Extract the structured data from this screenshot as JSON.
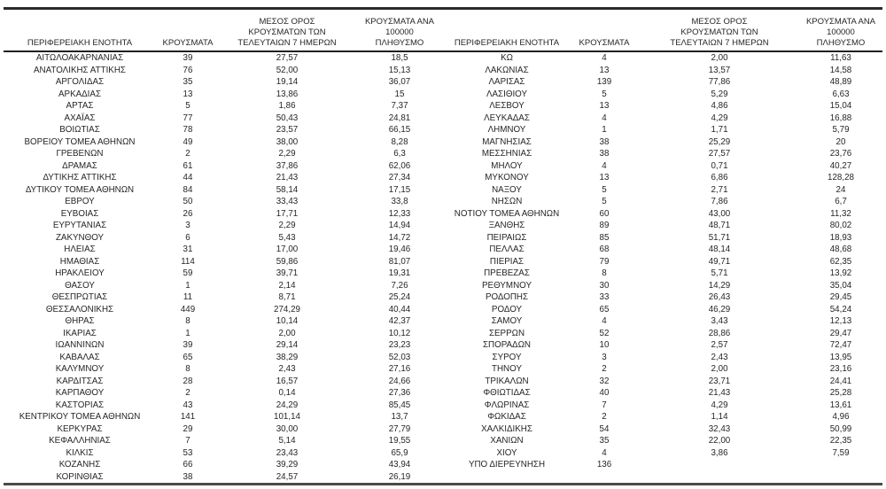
{
  "table": {
    "headers": {
      "region": "ΠΕΡΙΦΕΡΕΙΑΚΗ ΕΝΟΤΗΤΑ",
      "cases": "ΚΡΟΥΣΜΑΤΑ",
      "avg7": "ΜΕΣΟΣ ΟΡΟΣ\nΚΡΟΥΣΜΑΤΩΝ ΤΩΝ\nΤΕΛΕΥΤΑΙΩΝ 7 ΗΜΕΡΩΝ",
      "per100k": "ΚΡΟΥΣΜΑΤΑ ΑΝΑ 100000\nΠΛΗΘΥΣΜΟ"
    },
    "left_rows": [
      {
        "region": "ΑΙΤΩΛΟΑΚΑΡΝΑΝΙΑΣ",
        "cases": "39",
        "avg7": "27,57",
        "per100k": "18,5"
      },
      {
        "region": "ΑΝΑΤΟΛΙΚΗΣ ΑΤΤΙΚΗΣ",
        "cases": "76",
        "avg7": "52,00",
        "per100k": "15,13"
      },
      {
        "region": "ΑΡΓΟΛΙΔΑΣ",
        "cases": "35",
        "avg7": "19,14",
        "per100k": "36,07"
      },
      {
        "region": "ΑΡΚΑΔΙΑΣ",
        "cases": "13",
        "avg7": "13,86",
        "per100k": "15"
      },
      {
        "region": "ΑΡΤΑΣ",
        "cases": "5",
        "avg7": "1,86",
        "per100k": "7,37"
      },
      {
        "region": "ΑΧΑΪΑΣ",
        "cases": "77",
        "avg7": "50,43",
        "per100k": "24,81"
      },
      {
        "region": "ΒΟΙΩΤΙΑΣ",
        "cases": "78",
        "avg7": "23,57",
        "per100k": "66,15"
      },
      {
        "region": "ΒΟΡΕΙΟΥ ΤΟΜΕΑ ΑΘΗΝΩΝ",
        "cases": "49",
        "avg7": "38,00",
        "per100k": "8,28"
      },
      {
        "region": "ΓΡΕΒΕΝΩΝ",
        "cases": "2",
        "avg7": "2,29",
        "per100k": "6,3"
      },
      {
        "region": "ΔΡΑΜΑΣ",
        "cases": "61",
        "avg7": "37,86",
        "per100k": "62,06"
      },
      {
        "region": "ΔΥΤΙΚΗΣ ΑΤΤΙΚΗΣ",
        "cases": "44",
        "avg7": "21,43",
        "per100k": "27,34"
      },
      {
        "region": "ΔΥΤΙΚΟΥ ΤΟΜΕΑ ΑΘΗΝΩΝ",
        "cases": "84",
        "avg7": "58,14",
        "per100k": "17,15"
      },
      {
        "region": "ΕΒΡΟΥ",
        "cases": "50",
        "avg7": "33,43",
        "per100k": "33,8"
      },
      {
        "region": "ΕΥΒΟΙΑΣ",
        "cases": "26",
        "avg7": "17,71",
        "per100k": "12,33"
      },
      {
        "region": "ΕΥΡΥΤΑΝΙΑΣ",
        "cases": "3",
        "avg7": "2,29",
        "per100k": "14,94"
      },
      {
        "region": "ΖΑΚΥΝΘΟΥ",
        "cases": "6",
        "avg7": "5,43",
        "per100k": "14,72"
      },
      {
        "region": "ΗΛΕΙΑΣ",
        "cases": "31",
        "avg7": "17,00",
        "per100k": "19,46"
      },
      {
        "region": "ΗΜΑΘΙΑΣ",
        "cases": "114",
        "avg7": "59,86",
        "per100k": "81,07"
      },
      {
        "region": "ΗΡΑΚΛΕΙΟΥ",
        "cases": "59",
        "avg7": "39,71",
        "per100k": "19,31"
      },
      {
        "region": "ΘΑΣΟΥ",
        "cases": "1",
        "avg7": "2,14",
        "per100k": "7,26"
      },
      {
        "region": "ΘΕΣΠΡΩΤΙΑΣ",
        "cases": "11",
        "avg7": "8,71",
        "per100k": "25,24"
      },
      {
        "region": "ΘΕΣΣΑΛΟΝΙΚΗΣ",
        "cases": "449",
        "avg7": "274,29",
        "per100k": "40,44"
      },
      {
        "region": "ΘΗΡΑΣ",
        "cases": "8",
        "avg7": "10,14",
        "per100k": "42,37"
      },
      {
        "region": "ΙΚΑΡΙΑΣ",
        "cases": "1",
        "avg7": "2,00",
        "per100k": "10,12"
      },
      {
        "region": "ΙΩΑΝΝΙΝΩΝ",
        "cases": "39",
        "avg7": "29,14",
        "per100k": "23,23"
      },
      {
        "region": "ΚΑΒΑΛΑΣ",
        "cases": "65",
        "avg7": "38,29",
        "per100k": "52,03"
      },
      {
        "region": "ΚΑΛΥΜΝΟΥ",
        "cases": "8",
        "avg7": "2,43",
        "per100k": "27,16"
      },
      {
        "region": "ΚΑΡΔΙΤΣΑΣ",
        "cases": "28",
        "avg7": "16,57",
        "per100k": "24,66"
      },
      {
        "region": "ΚΑΡΠΑΘΟΥ",
        "cases": "2",
        "avg7": "0,14",
        "per100k": "27,36"
      },
      {
        "region": "ΚΑΣΤΟΡΙΑΣ",
        "cases": "43",
        "avg7": "24,29",
        "per100k": "85,45"
      },
      {
        "region": "ΚΕΝΤΡΙΚΟΥ ΤΟΜΕΑ ΑΘΗΝΩΝ",
        "cases": "141",
        "avg7": "101,14",
        "per100k": "13,7"
      },
      {
        "region": "ΚΕΡΚΥΡΑΣ",
        "cases": "29",
        "avg7": "30,00",
        "per100k": "27,79"
      },
      {
        "region": "ΚΕΦΑΛΛΗΝΙΑΣ",
        "cases": "7",
        "avg7": "5,14",
        "per100k": "19,55"
      },
      {
        "region": "ΚΙΛΚΙΣ",
        "cases": "53",
        "avg7": "23,43",
        "per100k": "65,9"
      },
      {
        "region": "ΚΟΖΑΝΗΣ",
        "cases": "66",
        "avg7": "39,29",
        "per100k": "43,94"
      },
      {
        "region": "ΚΟΡΙΝΘΙΑΣ",
        "cases": "38",
        "avg7": "24,57",
        "per100k": "26,19"
      }
    ],
    "right_rows": [
      {
        "region": "ΚΩ",
        "cases": "4",
        "avg7": "2,00",
        "per100k": "11,63"
      },
      {
        "region": "ΛΑΚΩΝΙΑΣ",
        "cases": "13",
        "avg7": "13,57",
        "per100k": "14,58"
      },
      {
        "region": "ΛΑΡΙΣΑΣ",
        "cases": "139",
        "avg7": "77,86",
        "per100k": "48,89"
      },
      {
        "region": "ΛΑΣΙΘΙΟΥ",
        "cases": "5",
        "avg7": "5,29",
        "per100k": "6,63"
      },
      {
        "region": "ΛΕΣΒΟΥ",
        "cases": "13",
        "avg7": "4,86",
        "per100k": "15,04"
      },
      {
        "region": "ΛΕΥΚΑΔΑΣ",
        "cases": "4",
        "avg7": "4,29",
        "per100k": "16,88"
      },
      {
        "region": "ΛΗΜΝΟΥ",
        "cases": "1",
        "avg7": "1,71",
        "per100k": "5,79"
      },
      {
        "region": "ΜΑΓΝΗΣΙΑΣ",
        "cases": "38",
        "avg7": "25,29",
        "per100k": "20"
      },
      {
        "region": "ΜΕΣΣΗΝΙΑΣ",
        "cases": "38",
        "avg7": "27,57",
        "per100k": "23,76"
      },
      {
        "region": "ΜΗΛΟΥ",
        "cases": "4",
        "avg7": "0,71",
        "per100k": "40,27"
      },
      {
        "region": "ΜΥΚΟΝΟΥ",
        "cases": "13",
        "avg7": "6,86",
        "per100k": "128,28"
      },
      {
        "region": "ΝΑΞΟΥ",
        "cases": "5",
        "avg7": "2,71",
        "per100k": "24"
      },
      {
        "region": "ΝΗΣΩΝ",
        "cases": "5",
        "avg7": "7,86",
        "per100k": "6,7"
      },
      {
        "region": "ΝΟΤΙΟΥ ΤΟΜΕΑ ΑΘΗΝΩΝ",
        "cases": "60",
        "avg7": "43,00",
        "per100k": "11,32"
      },
      {
        "region": "ΞΑΝΘΗΣ",
        "cases": "89",
        "avg7": "48,71",
        "per100k": "80,02"
      },
      {
        "region": "ΠΕΙΡΑΙΩΣ",
        "cases": "85",
        "avg7": "51,71",
        "per100k": "18,93"
      },
      {
        "region": "ΠΕΛΛΑΣ",
        "cases": "68",
        "avg7": "48,14",
        "per100k": "48,68"
      },
      {
        "region": "ΠΙΕΡΙΑΣ",
        "cases": "79",
        "avg7": "49,71",
        "per100k": "62,35"
      },
      {
        "region": "ΠΡΕΒΕΖΑΣ",
        "cases": "8",
        "avg7": "5,71",
        "per100k": "13,92"
      },
      {
        "region": "ΡΕΘΥΜΝΟΥ",
        "cases": "30",
        "avg7": "14,29",
        "per100k": "35,04"
      },
      {
        "region": "ΡΟΔΟΠΗΣ",
        "cases": "33",
        "avg7": "26,43",
        "per100k": "29,45"
      },
      {
        "region": "ΡΟΔΟΥ",
        "cases": "65",
        "avg7": "46,29",
        "per100k": "54,24"
      },
      {
        "region": "ΣΑΜΟΥ",
        "cases": "4",
        "avg7": "3,43",
        "per100k": "12,13"
      },
      {
        "region": "ΣΕΡΡΩΝ",
        "cases": "52",
        "avg7": "28,86",
        "per100k": "29,47"
      },
      {
        "region": "ΣΠΟΡΑΔΩΝ",
        "cases": "10",
        "avg7": "2,57",
        "per100k": "72,47"
      },
      {
        "region": "ΣΥΡΟΥ",
        "cases": "3",
        "avg7": "2,43",
        "per100k": "13,95"
      },
      {
        "region": "ΤΗΝΟΥ",
        "cases": "2",
        "avg7": "2,00",
        "per100k": "23,16"
      },
      {
        "region": "ΤΡΙΚΑΛΩΝ",
        "cases": "32",
        "avg7": "23,71",
        "per100k": "24,41"
      },
      {
        "region": "ΦΘΙΩΤΙΔΑΣ",
        "cases": "40",
        "avg7": "21,43",
        "per100k": "25,28"
      },
      {
        "region": "ΦΛΩΡΙΝΑΣ",
        "cases": "7",
        "avg7": "4,29",
        "per100k": "13,61"
      },
      {
        "region": "ΦΩΚΙΔΑΣ",
        "cases": "2",
        "avg7": "1,14",
        "per100k": "4,96"
      },
      {
        "region": "ΧΑΛΚΙΔΙΚΗΣ",
        "cases": "54",
        "avg7": "32,43",
        "per100k": "50,99"
      },
      {
        "region": "ΧΑΝΙΩΝ",
        "cases": "35",
        "avg7": "22,00",
        "per100k": "22,35"
      },
      {
        "region": "ΧΙΟΥ",
        "cases": "4",
        "avg7": "3,86",
        "per100k": "7,59"
      },
      {
        "region": "ΥΠΟ ΔΙΕΡΕΥΝΗΣΗ",
        "cases": "136",
        "avg7": "",
        "per100k": ""
      }
    ]
  }
}
